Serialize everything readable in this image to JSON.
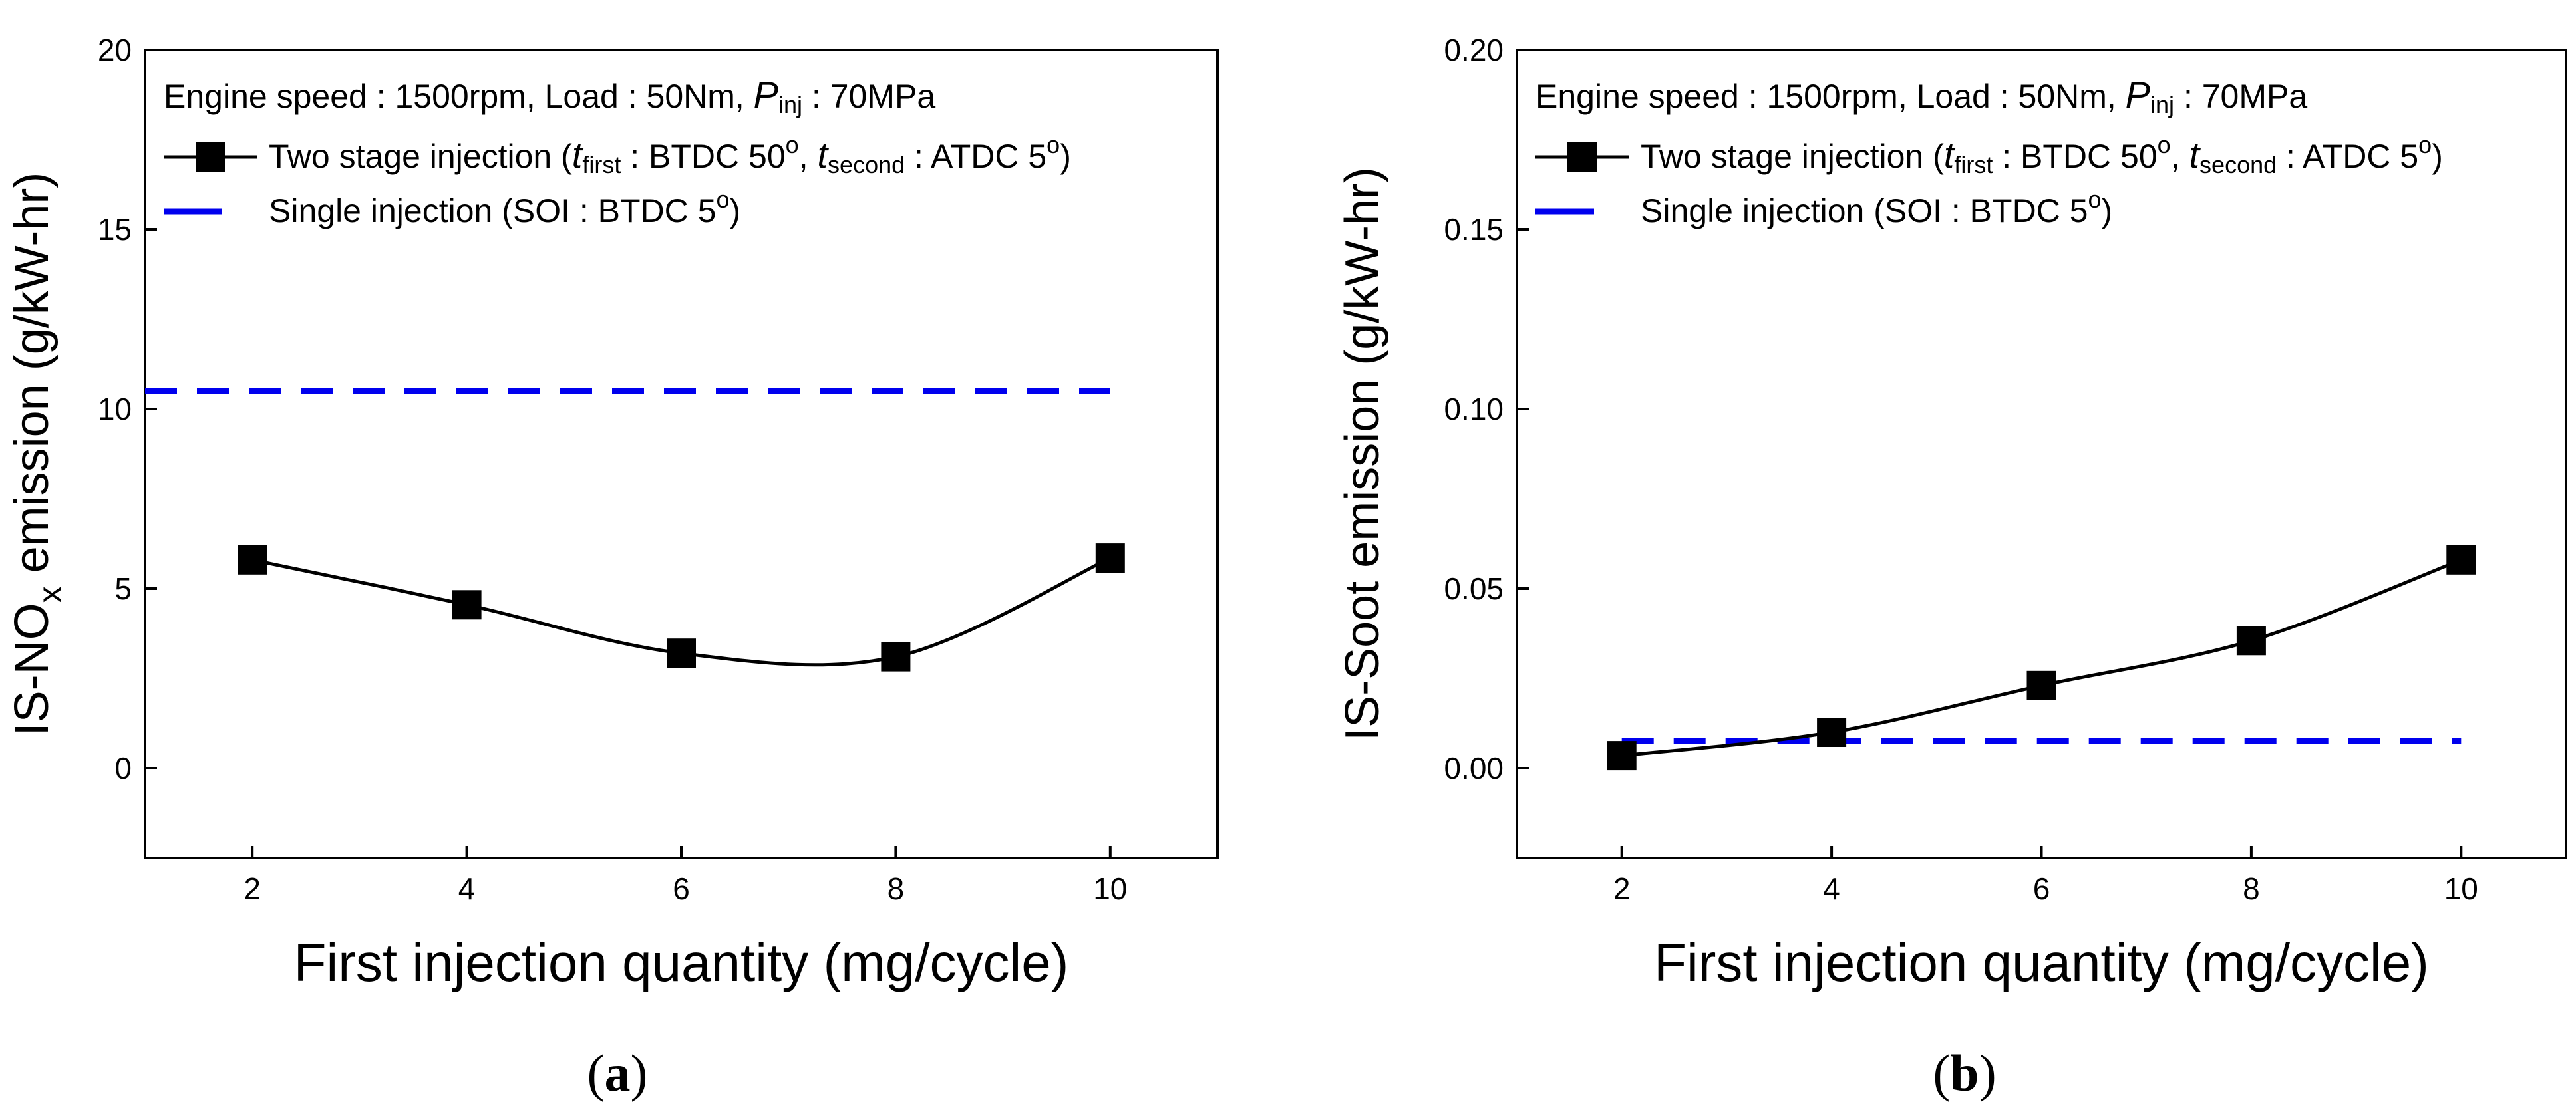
{
  "chart_data": [
    {
      "type": "line",
      "panel_label": "(a)",
      "panel_paren_open": "(",
      "panel_letter": "a",
      "panel_paren_close": ")",
      "xlabel": "First injection quantity (mg/cycle)",
      "ylabel": "IS-NOx emission (g/kW-hr)",
      "ylabel_parts": {
        "pre": "IS-NO",
        "sub": "x",
        "post": " emission (g/kW-hr)"
      },
      "xlim": [
        1.0,
        11.0
      ],
      "ylim": [
        -2.5,
        20
      ],
      "x_ticks": [
        2,
        4,
        6,
        8,
        10
      ],
      "y_ticks": [
        0,
        5,
        10,
        15,
        20
      ],
      "x_tick_labels": [
        "2",
        "4",
        "6",
        "8",
        "10"
      ],
      "y_tick_labels": [
        "0",
        "5",
        "10",
        "15",
        "20"
      ],
      "legend_position": "top-left",
      "legend": {
        "conditions": {
          "pre": "Engine speed : 1500rpm, Load : 50Nm, ",
          "p": "P",
          "p_sub": "inj",
          "post": " : 70MPa"
        },
        "two_stage": {
          "pre": "Two stage injection (",
          "t1": "t",
          "t1_sub": "first",
          "mid": " : BTDC 50",
          "t2": "t",
          "t2_sub": "second",
          "post": " : ATDC 5",
          "deg": "o",
          "close": ")",
          "sep": ", "
        },
        "single": {
          "pre": "Single injection (SOI : BTDC 5",
          "deg": "o",
          "close": ")"
        }
      },
      "series": [
        {
          "name": "Two stage injection",
          "color": "#000000",
          "marker": "square",
          "x": [
            2,
            4,
            6,
            8,
            10
          ],
          "values": [
            5.8,
            4.55,
            3.2,
            3.1,
            5.85
          ]
        },
        {
          "name": "Single injection (SOI : BTDC 5°)",
          "color": "#0000ee",
          "style": "dashed",
          "x": [
            1.0,
            10.0
          ],
          "values": [
            10.5,
            10.5
          ]
        }
      ]
    },
    {
      "type": "line",
      "panel_label": "(b)",
      "panel_paren_open": "(",
      "panel_letter": "b",
      "panel_paren_close": ")",
      "xlabel": "First injection quantity (mg/cycle)",
      "ylabel": "IS-Soot emission (g/kW-hr)",
      "ylabel_parts": {
        "pre": "IS-Soot emission (g/kW-hr)",
        "sub": "",
        "post": ""
      },
      "xlim": [
        1.0,
        11.0
      ],
      "ylim": [
        -0.025,
        0.2
      ],
      "x_ticks": [
        2,
        4,
        6,
        8,
        10
      ],
      "y_ticks": [
        0.0,
        0.05,
        0.1,
        0.15,
        0.2
      ],
      "x_tick_labels": [
        "2",
        "4",
        "6",
        "8",
        "10"
      ],
      "y_tick_labels": [
        "0.00",
        "0.05",
        "0.10",
        "0.15",
        "0.20"
      ],
      "legend_position": "top-left",
      "legend": {
        "conditions": {
          "pre": "Engine speed : 1500rpm, Load : 50Nm, ",
          "p": "P",
          "p_sub": "inj",
          "post": " : 70MPa"
        },
        "two_stage": {
          "pre": "Two stage injection (",
          "t1": "t",
          "t1_sub": "first",
          "mid": " : BTDC 50",
          "t2": "t",
          "t2_sub": "second",
          "post": " : ATDC 5",
          "deg": "o",
          "close": ")",
          "sep": ", "
        },
        "single": {
          "pre": "Single injection (SOI : BTDC 5",
          "deg": "o",
          "close": ")"
        }
      },
      "series": [
        {
          "name": "Two stage injection",
          "color": "#000000",
          "marker": "square",
          "x": [
            2,
            4,
            6,
            8,
            10
          ],
          "values": [
            0.0035,
            0.01,
            0.023,
            0.0355,
            0.058
          ]
        },
        {
          "name": "Single injection (SOI : BTDC 5°)",
          "color": "#0000ee",
          "style": "dashed",
          "x": [
            2.0,
            10.0
          ],
          "values": [
            0.0075,
            0.0075
          ]
        }
      ]
    }
  ]
}
